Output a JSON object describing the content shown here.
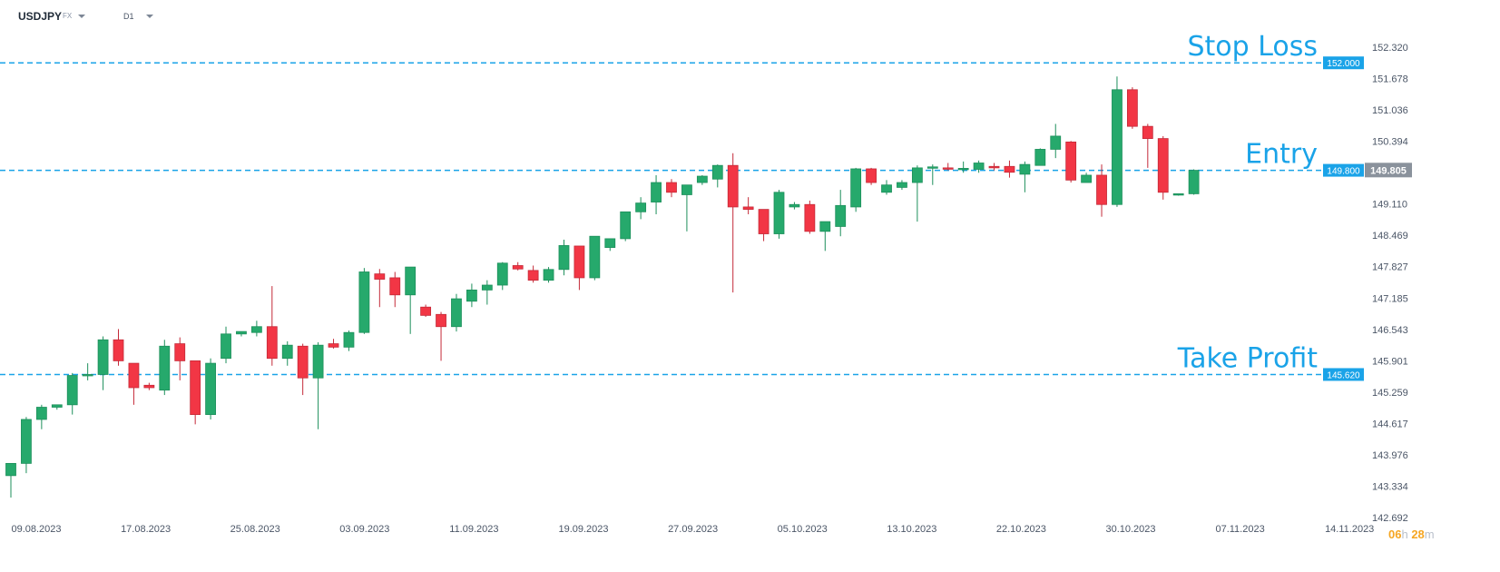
{
  "header": {
    "symbol": "USDJPY",
    "symbol_type": "FX",
    "timeframe": "D1"
  },
  "timer": {
    "hours": "06",
    "hours_unit": "h",
    "minutes": "28",
    "minutes_unit": "m"
  },
  "colors": {
    "bull": "#26a96c",
    "bear": "#f23645",
    "level": "#1aa3e8",
    "axis_text": "#4a5566",
    "current_tag": "#8a929c"
  },
  "chart_data": {
    "type": "candlestick",
    "symbol": "USDJPY",
    "timeframe": "D1",
    "ylim": [
      142.692,
      152.64
    ],
    "y_ticks": [
      "152.320",
      "151.678",
      "151.036",
      "150.394",
      "149.110",
      "148.469",
      "147.827",
      "147.185",
      "146.543",
      "145.901",
      "145.259",
      "144.617",
      "143.976",
      "143.334",
      "142.692"
    ],
    "x_ticks": [
      "09.08.2023",
      "17.08.2023",
      "25.08.2023",
      "03.09.2023",
      "11.09.2023",
      "19.09.2023",
      "27.09.2023",
      "05.10.2023",
      "13.10.2023",
      "22.10.2023",
      "30.10.2023",
      "07.11.2023",
      "14.11.2023"
    ],
    "current_price": "149.805",
    "current_value": 149.805,
    "levels": [
      {
        "label": "Stop Loss",
        "price": "152.000",
        "value": 152.0
      },
      {
        "label": "Entry",
        "price": "149.800",
        "value": 149.8
      },
      {
        "label": "Take Profit",
        "price": "145.620",
        "value": 145.62
      }
    ],
    "candles": [
      [
        143.55,
        143.8,
        143.1,
        143.8
      ],
      [
        143.8,
        144.75,
        143.6,
        144.7
      ],
      [
        144.7,
        145.0,
        144.5,
        144.95
      ],
      [
        144.95,
        145.0,
        144.9,
        145.0
      ],
      [
        145.0,
        145.65,
        144.8,
        145.6
      ],
      [
        145.6,
        145.85,
        145.5,
        145.62
      ],
      [
        145.62,
        146.4,
        145.3,
        146.33
      ],
      [
        146.33,
        146.55,
        145.8,
        145.9
      ],
      [
        145.85,
        145.85,
        145.0,
        145.35
      ],
      [
        145.4,
        145.45,
        145.3,
        145.35
      ],
      [
        145.3,
        146.33,
        145.2,
        146.2
      ],
      [
        146.25,
        146.38,
        145.5,
        145.9
      ],
      [
        145.9,
        145.9,
        144.6,
        144.8
      ],
      [
        144.8,
        145.95,
        144.7,
        145.85
      ],
      [
        145.95,
        146.6,
        145.85,
        146.45
      ],
      [
        146.45,
        146.5,
        146.4,
        146.5
      ],
      [
        146.48,
        146.72,
        146.4,
        146.6
      ],
      [
        146.6,
        147.43,
        145.8,
        145.95
      ],
      [
        145.95,
        146.3,
        145.8,
        146.22
      ],
      [
        146.2,
        146.25,
        145.2,
        145.55
      ],
      [
        145.55,
        146.28,
        144.5,
        146.22
      ],
      [
        146.25,
        146.35,
        146.15,
        146.18
      ],
      [
        146.18,
        146.52,
        146.1,
        146.48
      ],
      [
        146.48,
        147.8,
        146.45,
        147.72
      ],
      [
        147.68,
        147.78,
        147.0,
        147.57
      ],
      [
        147.6,
        147.72,
        147.0,
        147.25
      ],
      [
        147.25,
        147.82,
        146.45,
        147.82
      ],
      [
        147.0,
        147.05,
        146.8,
        146.83
      ],
      [
        146.85,
        146.9,
        145.9,
        146.6
      ],
      [
        146.6,
        147.27,
        146.5,
        147.17
      ],
      [
        147.12,
        147.48,
        147.0,
        147.35
      ],
      [
        147.35,
        147.55,
        147.05,
        147.45
      ],
      [
        147.45,
        147.92,
        147.35,
        147.9
      ],
      [
        147.85,
        147.92,
        147.75,
        147.78
      ],
      [
        147.75,
        147.85,
        147.5,
        147.55
      ],
      [
        147.55,
        147.82,
        147.5,
        147.77
      ],
      [
        147.77,
        148.38,
        147.65,
        148.26
      ],
      [
        148.25,
        148.25,
        147.35,
        147.6
      ],
      [
        147.6,
        148.45,
        147.55,
        148.45
      ],
      [
        148.22,
        148.4,
        148.15,
        148.4
      ],
      [
        148.4,
        148.95,
        148.35,
        148.95
      ],
      [
        148.95,
        149.25,
        148.8,
        149.13
      ],
      [
        149.15,
        149.7,
        148.9,
        149.55
      ],
      [
        149.55,
        149.62,
        149.25,
        149.35
      ],
      [
        149.3,
        149.5,
        148.55,
        149.5
      ],
      [
        149.55,
        149.7,
        149.5,
        149.68
      ],
      [
        149.62,
        149.92,
        149.45,
        149.9
      ],
      [
        149.9,
        150.15,
        147.3,
        149.05
      ],
      [
        149.05,
        149.25,
        148.9,
        149.0
      ],
      [
        149.0,
        149.0,
        148.35,
        148.5
      ],
      [
        148.5,
        149.4,
        148.4,
        149.35
      ],
      [
        149.05,
        149.15,
        149.0,
        149.1
      ],
      [
        149.1,
        149.18,
        148.5,
        148.55
      ],
      [
        148.55,
        148.75,
        148.15,
        148.75
      ],
      [
        148.65,
        149.4,
        148.45,
        149.08
      ],
      [
        149.05,
        149.85,
        148.95,
        149.83
      ],
      [
        149.83,
        149.85,
        149.5,
        149.55
      ],
      [
        149.35,
        149.6,
        149.3,
        149.5
      ],
      [
        149.45,
        149.6,
        149.4,
        149.55
      ],
      [
        149.55,
        149.9,
        148.75,
        149.85
      ],
      [
        149.85,
        149.92,
        149.5,
        149.87
      ],
      [
        149.85,
        149.95,
        149.8,
        149.84
      ],
      [
        149.82,
        149.98,
        149.75,
        149.84
      ],
      [
        149.82,
        150.0,
        149.75,
        149.95
      ],
      [
        149.88,
        149.95,
        149.8,
        149.85
      ],
      [
        149.88,
        150.0,
        149.65,
        149.76
      ],
      [
        149.72,
        149.98,
        149.35,
        149.92
      ],
      [
        149.9,
        150.25,
        149.9,
        150.23
      ],
      [
        150.23,
        150.75,
        150.05,
        150.5
      ],
      [
        150.38,
        150.4,
        149.55,
        149.6
      ],
      [
        149.55,
        149.75,
        149.55,
        149.7
      ],
      [
        149.7,
        149.92,
        148.85,
        149.1
      ],
      [
        149.1,
        151.72,
        149.05,
        151.45
      ],
      [
        151.45,
        151.5,
        150.65,
        150.7
      ],
      [
        150.7,
        150.75,
        149.85,
        150.45
      ],
      [
        150.45,
        150.5,
        149.2,
        149.35
      ],
      [
        149.3,
        149.32,
        149.28,
        149.32
      ],
      [
        149.32,
        149.82,
        149.3,
        149.8
      ]
    ]
  }
}
